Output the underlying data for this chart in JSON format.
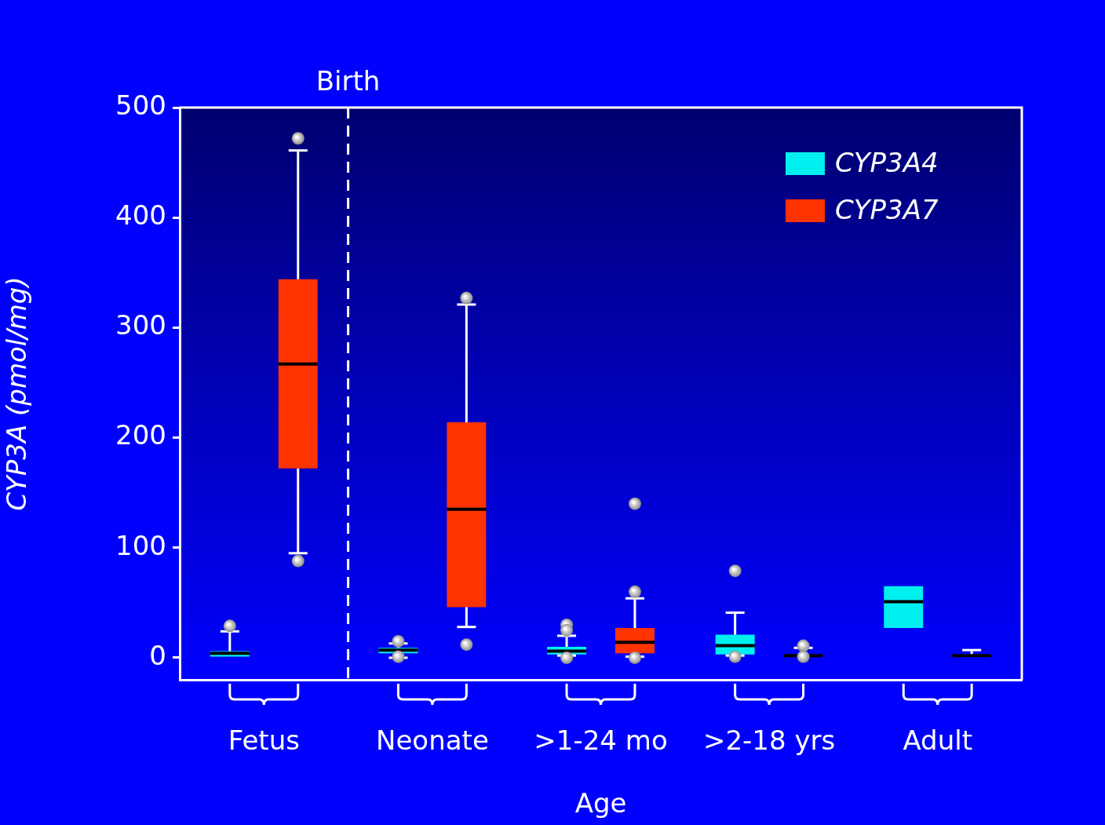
{
  "chart_data": {
    "type": "box",
    "xlabel": "Age",
    "ylabel": "CYP3A (pmol/mg)",
    "categories": [
      "Fetus",
      "Neonate",
      ">1-24 mo",
      ">2-18 yrs",
      "Adult"
    ],
    "ylim": [
      -20,
      500
    ],
    "yticks": [
      0,
      100,
      200,
      300,
      400,
      500
    ],
    "legend": "top right",
    "annotations": [
      "Birth"
    ],
    "series": [
      {
        "name": "CYP3A4",
        "color": "#00f0f0",
        "boxes": [
          {
            "low": 1,
            "q1": 1,
            "median": 4,
            "q3": 6,
            "high": 24,
            "outliers": [
              29
            ]
          },
          {
            "low": 0,
            "q1": 4,
            "median": 7,
            "q3": 9,
            "high": 13,
            "outliers": [
              15,
              1
            ]
          },
          {
            "low": 2,
            "q1": 3,
            "median": 6,
            "q3": 10,
            "high": 20,
            "outliers": [
              30,
              25,
              0
            ]
          },
          {
            "low": 2,
            "q1": 3,
            "median": 11,
            "q3": 21,
            "high": 41,
            "outliers": [
              79,
              1
            ]
          },
          {
            "low": 27,
            "q1": 27,
            "median": 51,
            "q3": 65,
            "high": 65
          }
        ]
      },
      {
        "name": "CYP3A7",
        "color": "#ff3300",
        "boxes": [
          {
            "low": 95,
            "q1": 172,
            "median": 267,
            "q3": 344,
            "high": 461,
            "outliers": [
              472,
              88
            ]
          },
          {
            "low": 28,
            "q1": 46,
            "median": 135,
            "q3": 214,
            "high": 321,
            "outliers": [
              327,
              12
            ]
          },
          {
            "low": 1,
            "q1": 4,
            "median": 14,
            "q3": 27,
            "high": 54,
            "outliers": [
              60,
              140,
              0
            ]
          },
          {
            "low": 0,
            "q1": 0,
            "median": 2,
            "q3": 3,
            "high": 9,
            "outliers": [
              11,
              1
            ]
          },
          {
            "low": 0,
            "q1": 0,
            "median": 2,
            "q3": 3,
            "high": 7
          }
        ]
      }
    ]
  }
}
